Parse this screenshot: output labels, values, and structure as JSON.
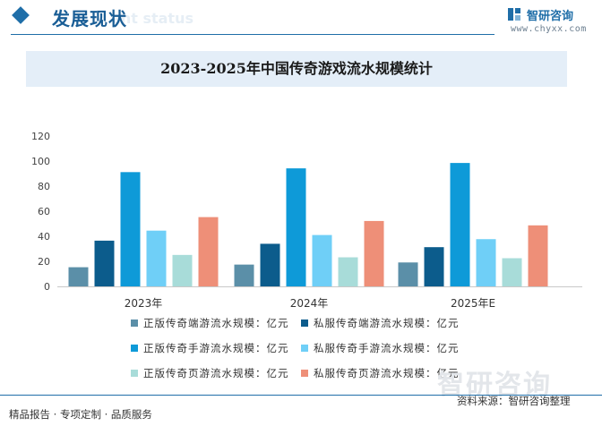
{
  "header": {
    "section_title": "发展现状",
    "section_subtitle": "ent status",
    "logo_name": "智研咨询",
    "logo_url": "www.chyxx.com"
  },
  "chart_data": {
    "type": "bar",
    "title": "2023-2025年中国传奇游戏流水规模统计",
    "categories": [
      "2023年",
      "2024年",
      "2025年E"
    ],
    "ylim": [
      0,
      120
    ],
    "yticks": [
      0,
      20,
      40,
      60,
      80,
      100,
      120
    ],
    "grid": false,
    "legend_position": "bottom",
    "series": [
      {
        "name": "正版传奇端游流水规模：亿元",
        "color": "#5b8fa8",
        "values": [
          15.3,
          17.4,
          19.1
        ]
      },
      {
        "name": "私服传奇端游流水规模：亿元",
        "color": "#0c5c8c",
        "values": [
          36.5,
          34.0,
          31.3
        ]
      },
      {
        "name": "正版传奇手游流水规模：亿元",
        "color": "#0e9ad8",
        "values": [
          91.2,
          94.2,
          98.5
        ]
      },
      {
        "name": "私服传奇手游流水规模：亿元",
        "color": "#6fcff7",
        "values": [
          44.5,
          41.0,
          37.7
        ]
      },
      {
        "name": "正版传奇页游流水规模：亿元",
        "color": "#a8dcd9",
        "values": [
          25.1,
          23.2,
          22.5
        ]
      },
      {
        "name": "私服传奇页游流水规模：亿元",
        "color": "#ee8f78",
        "values": [
          55.3,
          52.2,
          48.7
        ]
      }
    ]
  },
  "footer": {
    "watermark": "智研咨询",
    "source": "资料来源：智研咨询整理",
    "services": "精品报告 · 专项定制 · 品质服务"
  }
}
